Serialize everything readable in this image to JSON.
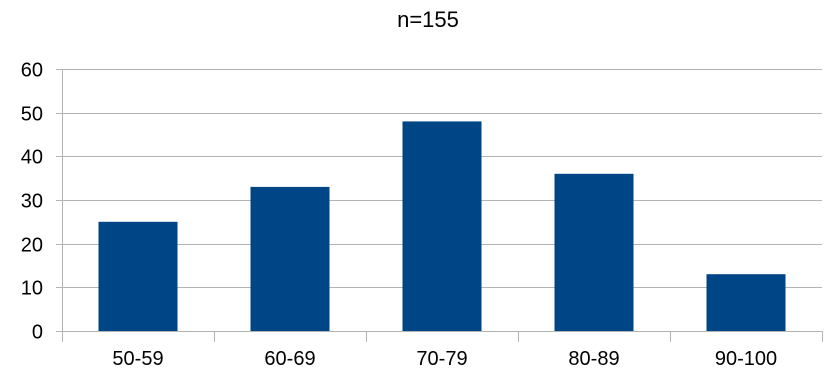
{
  "chart_data": {
    "type": "bar",
    "title": "n=155",
    "xlabel": "",
    "ylabel": "",
    "categories": [
      "50-59",
      "60-69",
      "70-79",
      "80-89",
      "90-100"
    ],
    "values": [
      25,
      33,
      48,
      36,
      13
    ],
    "ylim": [
      0,
      60
    ],
    "yticks": [
      0,
      10,
      20,
      30,
      40,
      50,
      60
    ],
    "grid": true,
    "legend": "none",
    "bar_color": "#004586",
    "grid_color": "#b3b3b3"
  }
}
